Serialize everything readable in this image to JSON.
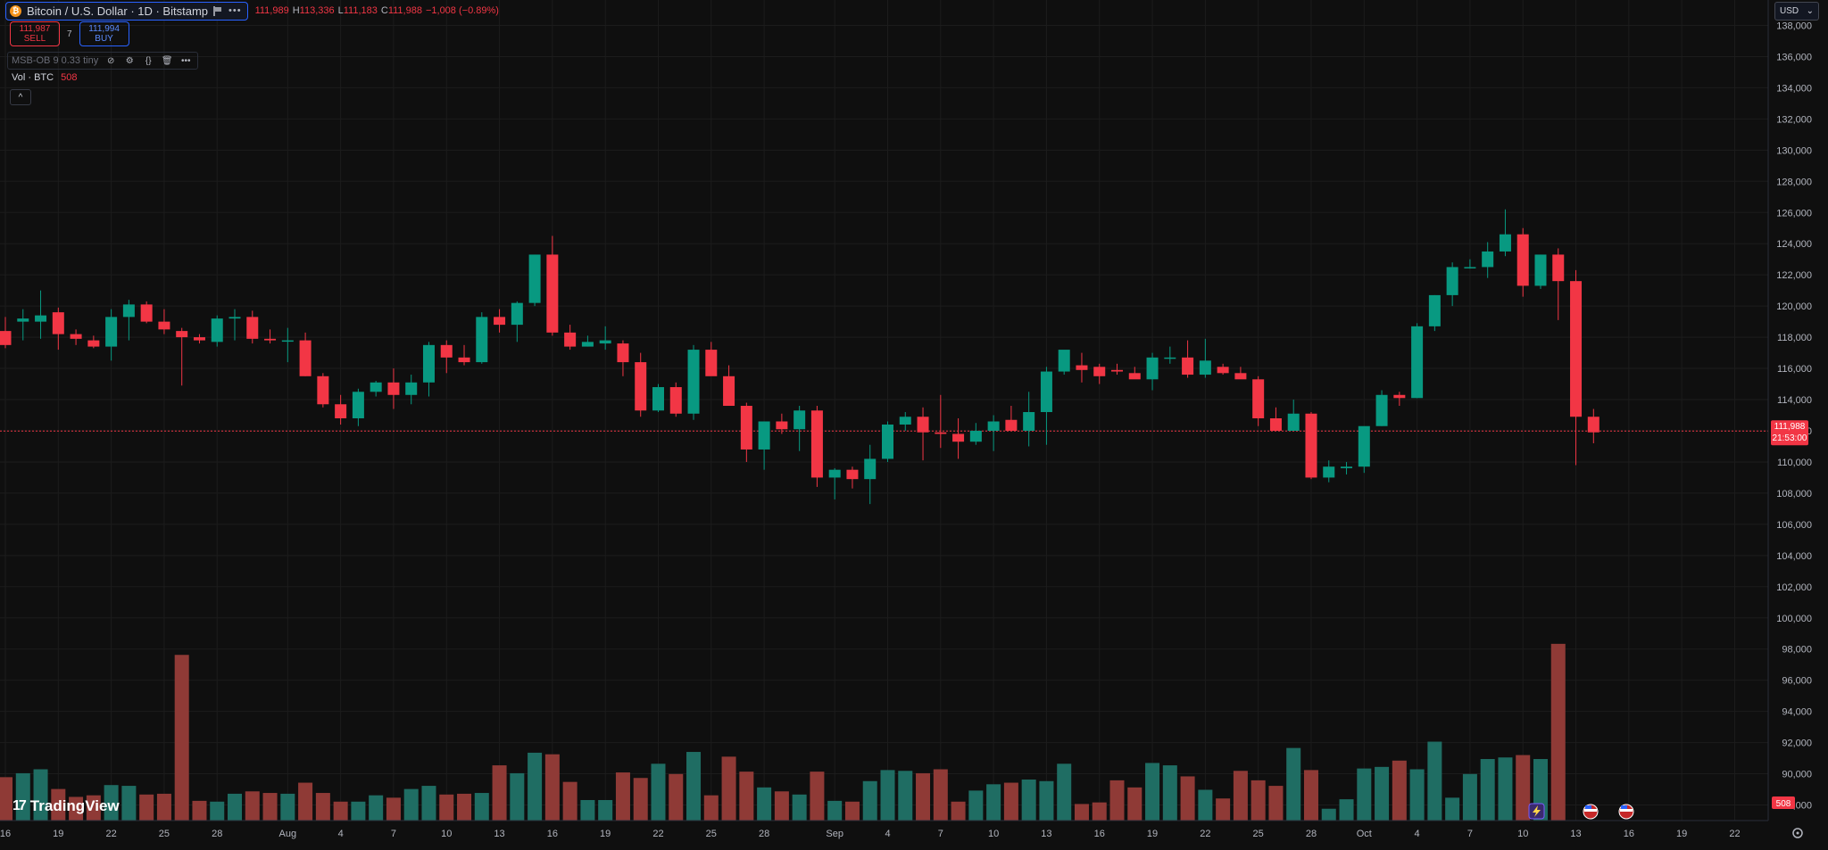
{
  "header": {
    "symbol_title": "Bitcoin / U.S. Dollar · 1D · Bitstamp",
    "logo_letter": "₿",
    "more_label": "•••",
    "ohlc": [
      {
        "label": "",
        "value": "111,989"
      },
      {
        "label": "H",
        "value": "113,336"
      },
      {
        "label": "L",
        "value": "111,183"
      },
      {
        "label": "C",
        "value": "111,988"
      },
      {
        "label": "",
        "value": "−1,008 (−0.89%)"
      }
    ]
  },
  "trade": {
    "sell_price": "111,987",
    "sell_label": "SELL",
    "spread": "7",
    "buy_price": "111,994",
    "buy_label": "BUY"
  },
  "indicator": {
    "name": "MSB-OB 9 0.33 tiny",
    "more_label": "•••"
  },
  "volume_legend": {
    "label": "Vol · BTC",
    "value": "508"
  },
  "collapse_label": "^",
  "currency": {
    "value": "USD",
    "chevron": "⌄"
  },
  "price_label": {
    "price": "111,988",
    "countdown": "21:53:00"
  },
  "volume_label": "508",
  "watermark": "TradingView",
  "colors": {
    "up": "#089981",
    "down": "#f23645",
    "up_vol": "#1f6d63",
    "down_vol": "#8f3a36",
    "background": "#0f0f0f"
  },
  "chart_data": {
    "type": "candlestick",
    "ylim": [
      87000,
      139000
    ],
    "y_ticks": [
      "138,000",
      "136,000",
      "134,000",
      "132,000",
      "130,000",
      "128,000",
      "126,000",
      "124,000",
      "122,000",
      "120,000",
      "118,000",
      "116,000",
      "114,000",
      "112,000",
      "110,000",
      "108,000",
      "106,000",
      "104,000",
      "102,000",
      "100,000",
      "98,000",
      "96,000",
      "94,000",
      "92,000",
      "90,000",
      "88,000"
    ],
    "x_ticks": [
      {
        "label": "16",
        "index": 0
      },
      {
        "label": "19",
        "index": 3
      },
      {
        "label": "22",
        "index": 6
      },
      {
        "label": "25",
        "index": 9
      },
      {
        "label": "28",
        "index": 12
      },
      {
        "label": "Aug",
        "index": 16
      },
      {
        "label": "4",
        "index": 19
      },
      {
        "label": "7",
        "index": 22
      },
      {
        "label": "10",
        "index": 25
      },
      {
        "label": "13",
        "index": 28
      },
      {
        "label": "16",
        "index": 31
      },
      {
        "label": "19",
        "index": 34
      },
      {
        "label": "22",
        "index": 37
      },
      {
        "label": "25",
        "index": 40
      },
      {
        "label": "28",
        "index": 43
      },
      {
        "label": "Sep",
        "index": 47
      },
      {
        "label": "4",
        "index": 50
      },
      {
        "label": "7",
        "index": 53
      },
      {
        "label": "10",
        "index": 56
      },
      {
        "label": "13",
        "index": 59
      },
      {
        "label": "16",
        "index": 62
      },
      {
        "label": "19",
        "index": 65
      },
      {
        "label": "22",
        "index": 68
      },
      {
        "label": "25",
        "index": 71
      },
      {
        "label": "28",
        "index": 74
      },
      {
        "label": "Oct",
        "index": 77
      },
      {
        "label": "4",
        "index": 80
      },
      {
        "label": "7",
        "index": 83
      },
      {
        "label": "10",
        "index": 86
      },
      {
        "label": "13",
        "index": 89
      },
      {
        "label": "16",
        "index": 92
      },
      {
        "label": "19",
        "index": 95
      },
      {
        "label": "22",
        "index": 98
      }
    ],
    "last_price": 111988,
    "volume_max": 2600,
    "candles": [
      [
        118400,
        119300,
        117300,
        117500,
        550
      ],
      [
        119000,
        119800,
        117800,
        119200,
        600
      ],
      [
        119000,
        121000,
        117900,
        119400,
        650
      ],
      [
        119600,
        119900,
        117200,
        118200,
        400
      ],
      [
        118200,
        118500,
        117500,
        117900,
        300
      ],
      [
        117800,
        118100,
        117300,
        117400,
        320
      ],
      [
        117400,
        119800,
        116500,
        119300,
        450
      ],
      [
        119300,
        120400,
        117800,
        120100,
        440
      ],
      [
        120100,
        120300,
        118900,
        119000,
        330
      ],
      [
        119000,
        119800,
        118200,
        118500,
        340
      ],
      [
        118400,
        118600,
        114900,
        118000,
        2100
      ],
      [
        118000,
        118200,
        117600,
        117800,
        250
      ],
      [
        117700,
        119400,
        117400,
        119200,
        240
      ],
      [
        119200,
        119800,
        117800,
        119300,
        340
      ],
      [
        119300,
        119700,
        117600,
        117900,
        370
      ],
      [
        117900,
        118500,
        117600,
        117800,
        350
      ],
      [
        117800,
        118600,
        116400,
        117800,
        340
      ],
      [
        117800,
        118300,
        115500,
        115500,
        480
      ],
      [
        115500,
        115700,
        113500,
        113700,
        350
      ],
      [
        113700,
        114300,
        112400,
        112800,
        240
      ],
      [
        112800,
        114700,
        112300,
        114500,
        240
      ],
      [
        114500,
        115200,
        114200,
        115100,
        320
      ],
      [
        115100,
        116000,
        113400,
        114300,
        290
      ],
      [
        114300,
        115600,
        113700,
        115100,
        400
      ],
      [
        115100,
        117700,
        114200,
        117500,
        440
      ],
      [
        117500,
        117800,
        115700,
        116700,
        330
      ],
      [
        116700,
        117500,
        116200,
        116400,
        340
      ],
      [
        116400,
        119600,
        116300,
        119300,
        350
      ],
      [
        119300,
        119800,
        118300,
        118800,
        700
      ],
      [
        118800,
        120300,
        117700,
        120200,
        600
      ],
      [
        120200,
        123300,
        120000,
        123300,
        860
      ],
      [
        123300,
        124500,
        118100,
        118300,
        840
      ],
      [
        118300,
        118800,
        117200,
        117400,
        490
      ],
      [
        117400,
        118100,
        117400,
        117700,
        260
      ],
      [
        117600,
        118700,
        117200,
        117800,
        260
      ],
      [
        117600,
        117800,
        115500,
        116400,
        610
      ],
      [
        116400,
        117000,
        112900,
        113300,
        540
      ],
      [
        113300,
        115000,
        113200,
        114800,
        720
      ],
      [
        114800,
        115100,
        112900,
        113100,
        590
      ],
      [
        113100,
        117500,
        112700,
        117200,
        870
      ],
      [
        117200,
        117700,
        115600,
        115500,
        320
      ],
      [
        115500,
        116200,
        113600,
        113600,
        810
      ],
      [
        113600,
        113800,
        110000,
        110800,
        620
      ],
      [
        110800,
        112400,
        109500,
        112600,
        420
      ],
      [
        112600,
        113100,
        111800,
        112100,
        370
      ],
      [
        112100,
        113600,
        110700,
        113300,
        330
      ],
      [
        113300,
        113600,
        108400,
        109000,
        620
      ],
      [
        109000,
        109600,
        107600,
        109500,
        250
      ],
      [
        109500,
        109700,
        108300,
        108900,
        240
      ],
      [
        108900,
        111100,
        107300,
        110200,
        500
      ],
      [
        110200,
        112600,
        110000,
        112400,
        640
      ],
      [
        112400,
        113200,
        112000,
        112900,
        630
      ],
      [
        112900,
        113500,
        110100,
        111900,
        600
      ],
      [
        111900,
        114300,
        110900,
        111800,
        650
      ],
      [
        111800,
        112800,
        110200,
        111300,
        240
      ],
      [
        111300,
        112500,
        111100,
        112000,
        380
      ],
      [
        112000,
        113000,
        110700,
        112600,
        460
      ],
      [
        112700,
        113600,
        112100,
        112000,
        480
      ],
      [
        112000,
        114500,
        111000,
        113200,
        520
      ],
      [
        113200,
        116100,
        111100,
        115800,
        500
      ],
      [
        115800,
        116700,
        115600,
        117200,
        720
      ],
      [
        116200,
        117000,
        115100,
        115900,
        210
      ],
      [
        116100,
        116300,
        115000,
        115500,
        230
      ],
      [
        115900,
        116300,
        115600,
        115800,
        510
      ],
      [
        115700,
        116100,
        115600,
        115300,
        420
      ],
      [
        115300,
        117000,
        114600,
        116700,
        730
      ],
      [
        116700,
        117400,
        116300,
        116700,
        700
      ],
      [
        116700,
        117800,
        115400,
        115600,
        560
      ],
      [
        115600,
        117900,
        115400,
        116500,
        390
      ],
      [
        116100,
        116300,
        115600,
        115700,
        280
      ],
      [
        115700,
        116100,
        115400,
        115300,
        630
      ],
      [
        115300,
        115500,
        112300,
        112800,
        510
      ],
      [
        112800,
        113500,
        112200,
        112000,
        440
      ],
      [
        112000,
        114000,
        112000,
        113100,
        920
      ],
      [
        113100,
        113200,
        108900,
        109000,
        640
      ],
      [
        109000,
        110100,
        108700,
        109700,
        150
      ],
      [
        109600,
        110000,
        109200,
        109700,
        270
      ],
      [
        109700,
        112000,
        109300,
        112300,
        660
      ],
      [
        112300,
        114600,
        112300,
        114300,
        680
      ],
      [
        114300,
        114500,
        113600,
        114100,
        760
      ],
      [
        114100,
        118900,
        114100,
        118700,
        650
      ],
      [
        118700,
        120700,
        118400,
        120700,
        1000
      ],
      [
        120700,
        122800,
        120000,
        122500,
        290
      ],
      [
        122500,
        123000,
        122400,
        122500,
        590
      ],
      [
        122500,
        124100,
        121800,
        123500,
        780
      ],
      [
        123500,
        126200,
        123200,
        124600,
        800
      ],
      [
        124600,
        125000,
        120600,
        121300,
        830
      ],
      [
        121300,
        123300,
        121100,
        123300,
        780
      ],
      [
        123300,
        123700,
        119100,
        121600,
        2240
      ],
      [
        121600,
        122300,
        109800,
        112900,
        0
      ],
      [
        112900,
        113400,
        111200,
        111900,
        0
      ]
    ]
  }
}
